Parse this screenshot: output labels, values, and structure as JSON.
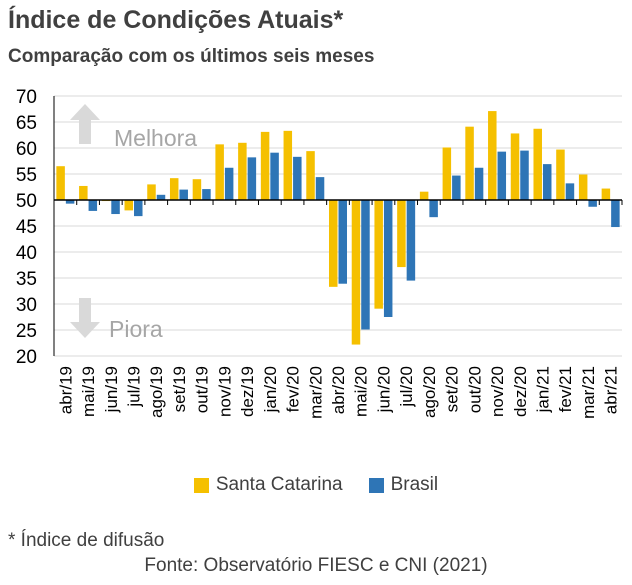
{
  "title": "Índice de Condições Atuais*",
  "subtitle": "Comparação com os últimos seis meses",
  "footnote": "* Índice de difusão",
  "source": "Fonte: Observatório FIESC e CNI (2021)",
  "annotations": {
    "up": "Melhora",
    "down": "Piora"
  },
  "colors": {
    "santa_catarina": "#F5C000",
    "brasil": "#2E75B6",
    "axis": "#000000",
    "grid": "#D9D9D9",
    "annotation": "#A6A6A6"
  },
  "chart_data": {
    "type": "bar",
    "baseline": 50,
    "ylim": [
      20,
      70
    ],
    "yticks": [
      20,
      25,
      30,
      35,
      40,
      45,
      50,
      55,
      60,
      65,
      70
    ],
    "grid": true,
    "legend_position": "bottom",
    "categories": [
      "abr/19",
      "mai/19",
      "jun/19",
      "jul/19",
      "ago/19",
      "set/19",
      "out/19",
      "nov/19",
      "dez/19",
      "jan/20",
      "fev/20",
      "mar/20",
      "abr/20",
      "mai/20",
      "jun/20",
      "jul/20",
      "ago/20",
      "set/20",
      "out/20",
      "nov/20",
      "dez/20",
      "jan/21",
      "fev/21",
      "mar/21",
      "abr/21"
    ],
    "series": [
      {
        "name": "Santa Catarina",
        "values": [
          56.5,
          52.7,
          49.8,
          48.0,
          53.0,
          54.2,
          54.0,
          60.7,
          61.0,
          63.1,
          63.3,
          59.4,
          33.3,
          22.2,
          29.1,
          37.1,
          51.6,
          60.1,
          64.1,
          67.1,
          62.8,
          63.7,
          59.7,
          54.9,
          52.2
        ]
      },
      {
        "name": "Brasil",
        "values": [
          49.3,
          47.9,
          47.3,
          46.9,
          51.0,
          52.0,
          52.1,
          56.2,
          58.2,
          59.1,
          58.3,
          54.4,
          33.9,
          25.1,
          27.5,
          34.5,
          46.7,
          54.7,
          56.2,
          59.3,
          59.5,
          56.9,
          53.2,
          48.7,
          44.8
        ]
      }
    ]
  }
}
